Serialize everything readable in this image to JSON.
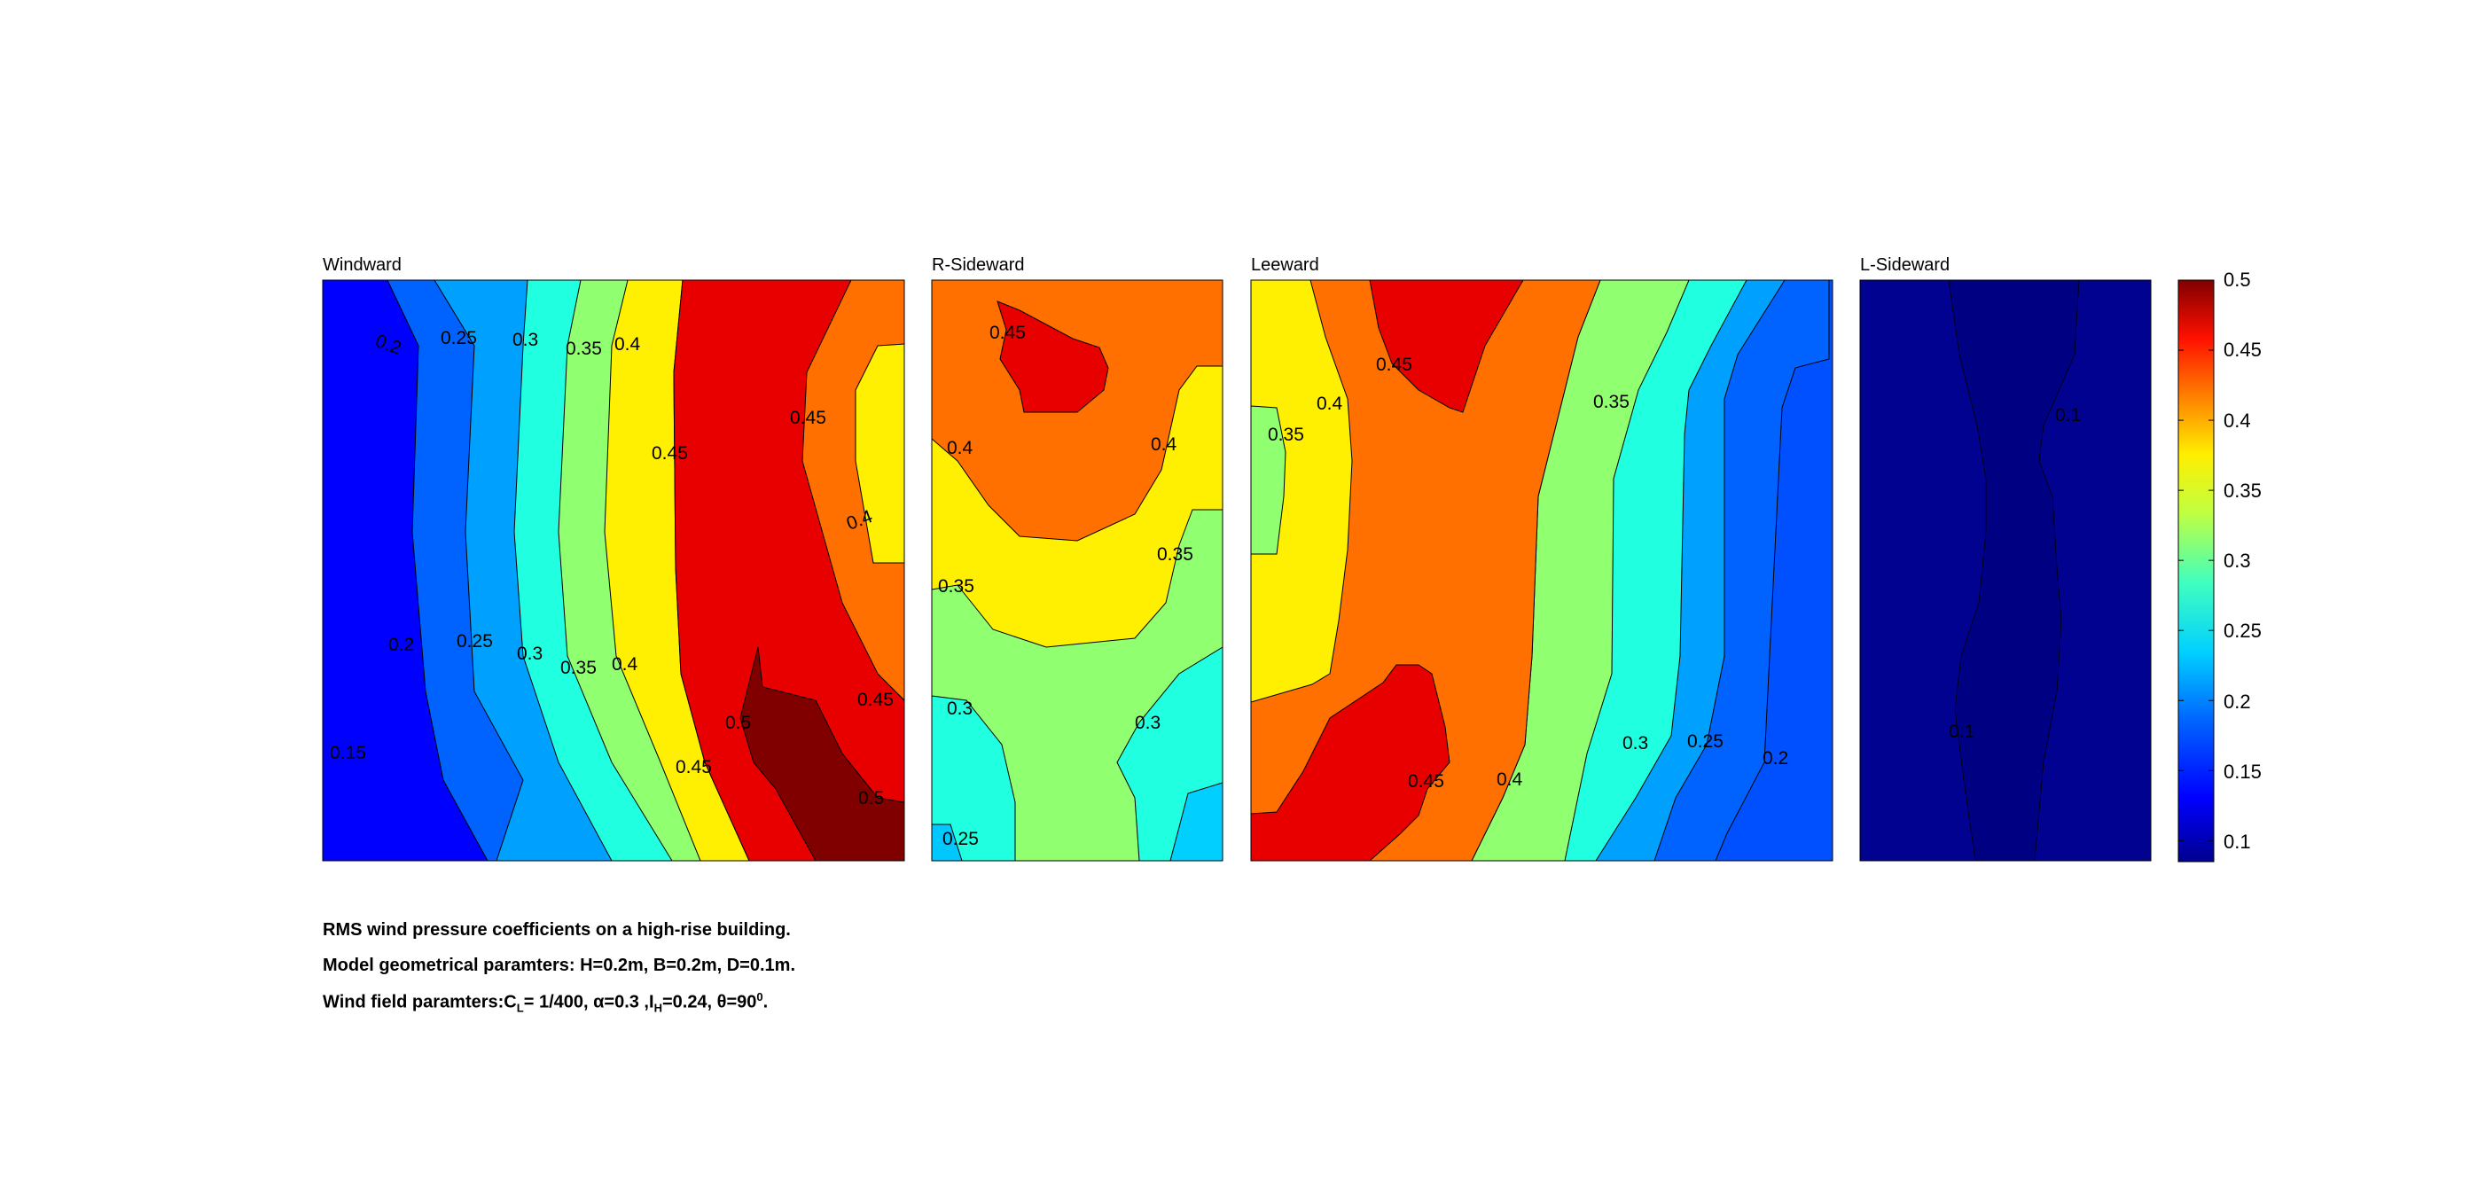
{
  "chart_data": [
    {
      "type": "heatmap",
      "title": "Windward",
      "contour_levels": [
        0.15,
        0.2,
        0.25,
        0.3,
        0.35,
        0.4,
        0.45,
        0.5
      ],
      "contour_labels": [
        "0.2",
        "0.25",
        "0.3",
        "0.35",
        "0.4",
        "0.45",
        "0.4",
        "0.45",
        "0.2",
        "0.25",
        "0.3",
        "0.35",
        "0.4",
        "0.45",
        "0.5",
        "0.15",
        "0.45",
        "0.5"
      ],
      "xlim": [
        0,
        1
      ],
      "ylim": [
        0,
        1
      ]
    },
    {
      "type": "heatmap",
      "title": "R-Sideward",
      "contour_levels": [
        0.25,
        0.3,
        0.35,
        0.4,
        0.45
      ],
      "contour_labels": [
        "0.45",
        "0.4",
        "0.4",
        "0.35",
        "0.35",
        "0.3",
        "0.3",
        "0.25"
      ],
      "xlim": [
        0,
        1
      ],
      "ylim": [
        0,
        1
      ]
    },
    {
      "type": "heatmap",
      "title": "Leeward",
      "contour_levels": [
        0.2,
        0.25,
        0.3,
        0.35,
        0.4,
        0.45
      ],
      "contour_labels": [
        "0.45",
        "0.4",
        "0.35",
        "0.35",
        "0.45",
        "0.4",
        "0.3",
        "0.25",
        "0.2"
      ],
      "xlim": [
        0,
        1
      ],
      "ylim": [
        0,
        1
      ]
    },
    {
      "type": "heatmap",
      "title": "L-Sideward",
      "contour_levels": [
        0.1
      ],
      "contour_labels": [
        "0.1",
        "0.1"
      ],
      "xlim": [
        0,
        1
      ],
      "ylim": [
        0,
        1
      ]
    }
  ],
  "colorbar": {
    "ticks": [
      "0.5",
      "0.45",
      "0.4",
      "0.35",
      "0.3",
      "0.25",
      "0.2",
      "0.15",
      "0.1"
    ],
    "range": [
      0.085,
      0.5
    ],
    "colormap": "jet"
  },
  "colors": {
    "c005": "#0000c8",
    "c010": "#00008f",
    "c015": "#0000ff",
    "c020": "#0062ff",
    "c025": "#00a0ff",
    "c030": "#20ffe0",
    "c035": "#90ff70",
    "c040": "#ffef00",
    "c045": "#ff7000",
    "c050": "#e80000",
    "c055": "#800000",
    "lsidebase": "#020290",
    "lsidecenter": "#000082",
    "leewardlight": "#0050ff",
    "rsidelight": "#00cfff",
    "rsidelight2": "#00c8ff"
  },
  "captions": {
    "line1": "RMS wind pressure coefficients on a high-rise building.",
    "line2": "Model geometrical paramters: H=0.2m, B=0.2m, D=0.1m.",
    "line3_a": "Wind field paramters:C",
    "line3_sub1": "L",
    "line3_b": "= 1/400, α=0.3 ,I",
    "line3_sub2": "H",
    "line3_c": "=0.24, θ=90",
    "line3_sup": "0",
    "line3_d": "."
  }
}
